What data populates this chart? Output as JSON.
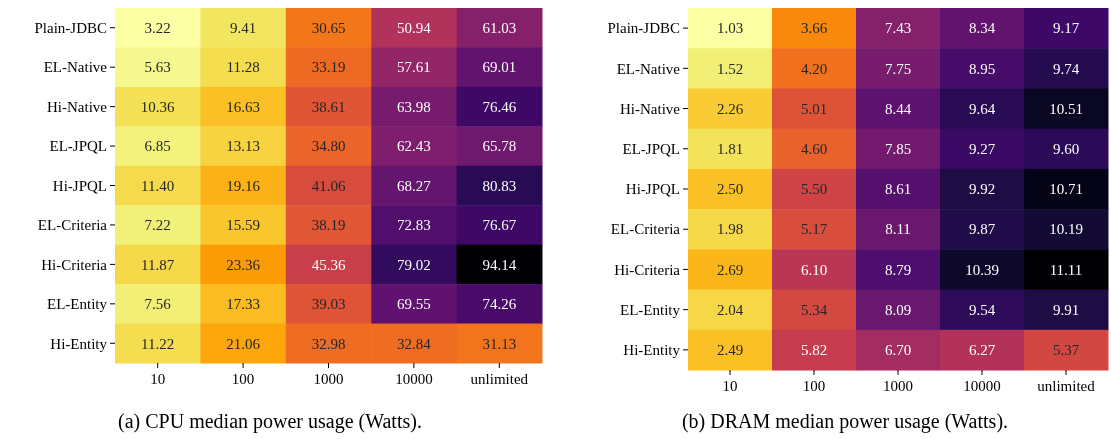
{
  "chart_data": [
    {
      "type": "heatmap",
      "title": "(a)  CPU median power usage (Watts).",
      "categories": [
        "10",
        "100",
        "1000",
        "10000",
        "unlimited"
      ],
      "y_categories": [
        "Plain-JDBC",
        "EL-Native",
        "Hi-Native",
        "EL-JPQL",
        "Hi-JPQL",
        "EL-Criteria",
        "Hi-Criteria",
        "EL-Entity",
        "Hi-Entity"
      ],
      "cells": [
        [
          3.22,
          9.41,
          30.65,
          50.94,
          61.03
        ],
        [
          5.63,
          11.28,
          33.19,
          57.61,
          69.01
        ],
        [
          10.36,
          16.63,
          38.61,
          63.98,
          76.46
        ],
        [
          6.85,
          13.13,
          34.8,
          62.43,
          65.78
        ],
        [
          11.4,
          19.16,
          41.06,
          68.27,
          80.83
        ],
        [
          7.22,
          15.59,
          38.19,
          72.83,
          76.67
        ],
        [
          11.87,
          23.36,
          45.36,
          79.02,
          94.14
        ],
        [
          7.56,
          17.33,
          39.03,
          69.55,
          74.26
        ],
        [
          11.22,
          21.06,
          32.98,
          32.84,
          31.13
        ]
      ],
      "cell_labels": [
        [
          "3.22",
          "9.41",
          "30.65",
          "50.94",
          "61.03"
        ],
        [
          "5.63",
          "11.28",
          "33.19",
          "57.61",
          "69.01"
        ],
        [
          "10.36",
          "16.63",
          "38.61",
          "63.98",
          "76.46"
        ],
        [
          "6.85",
          "13.13",
          "34.80",
          "62.43",
          "65.78"
        ],
        [
          "11.40",
          "19.16",
          "41.06",
          "68.27",
          "80.83"
        ],
        [
          "7.22",
          "15.59",
          "38.19",
          "72.83",
          "76.67"
        ],
        [
          "11.87",
          "23.36",
          "45.36",
          "79.02",
          "94.14"
        ],
        [
          "7.56",
          "17.33",
          "39.03",
          "69.55",
          "74.26"
        ],
        [
          "11.22",
          "21.06",
          "32.98",
          "32.84",
          "31.13"
        ]
      ]
    },
    {
      "type": "heatmap",
      "title": "(b)  DRAM median power usage (Watts).",
      "categories": [
        "10",
        "100",
        "1000",
        "10000",
        "unlimited"
      ],
      "y_categories": [
        "Plain-JDBC",
        "EL-Native",
        "Hi-Native",
        "EL-JPQL",
        "Hi-JPQL",
        "EL-Criteria",
        "Hi-Criteria",
        "EL-Entity",
        "Hi-Entity"
      ],
      "cells": [
        [
          1.03,
          3.66,
          7.43,
          8.34,
          9.17
        ],
        [
          1.52,
          4.2,
          7.75,
          8.95,
          9.74
        ],
        [
          2.26,
          5.01,
          8.44,
          9.64,
          10.51
        ],
        [
          1.81,
          4.6,
          7.85,
          9.27,
          9.6
        ],
        [
          2.5,
          5.5,
          8.61,
          9.92,
          10.71
        ],
        [
          1.98,
          5.17,
          8.11,
          9.87,
          10.19
        ],
        [
          2.69,
          6.1,
          8.79,
          10.39,
          11.11
        ],
        [
          2.04,
          5.34,
          8.09,
          9.54,
          9.91
        ],
        [
          2.49,
          5.82,
          6.7,
          6.27,
          5.37
        ]
      ],
      "cell_labels": [
        [
          "1.03",
          "3.66",
          "7.43",
          "8.34",
          "9.17"
        ],
        [
          "1.52",
          "4.20",
          "7.75",
          "8.95",
          "9.74"
        ],
        [
          "2.26",
          "5.01",
          "8.44",
          "9.64",
          "10.51"
        ],
        [
          "1.81",
          "4.60",
          "7.85",
          "9.27",
          "9.60"
        ],
        [
          "2.50",
          "5.50",
          "8.61",
          "9.92",
          "10.71"
        ],
        [
          "1.98",
          "5.17",
          "8.11",
          "9.87",
          "10.19"
        ],
        [
          "2.69",
          "6.10",
          "8.79",
          "10.39",
          "11.11"
        ],
        [
          "2.04",
          "5.34",
          "8.09",
          "9.54",
          "9.91"
        ],
        [
          "2.49",
          "5.82",
          "6.70",
          "6.27",
          "5.37"
        ]
      ]
    }
  ]
}
